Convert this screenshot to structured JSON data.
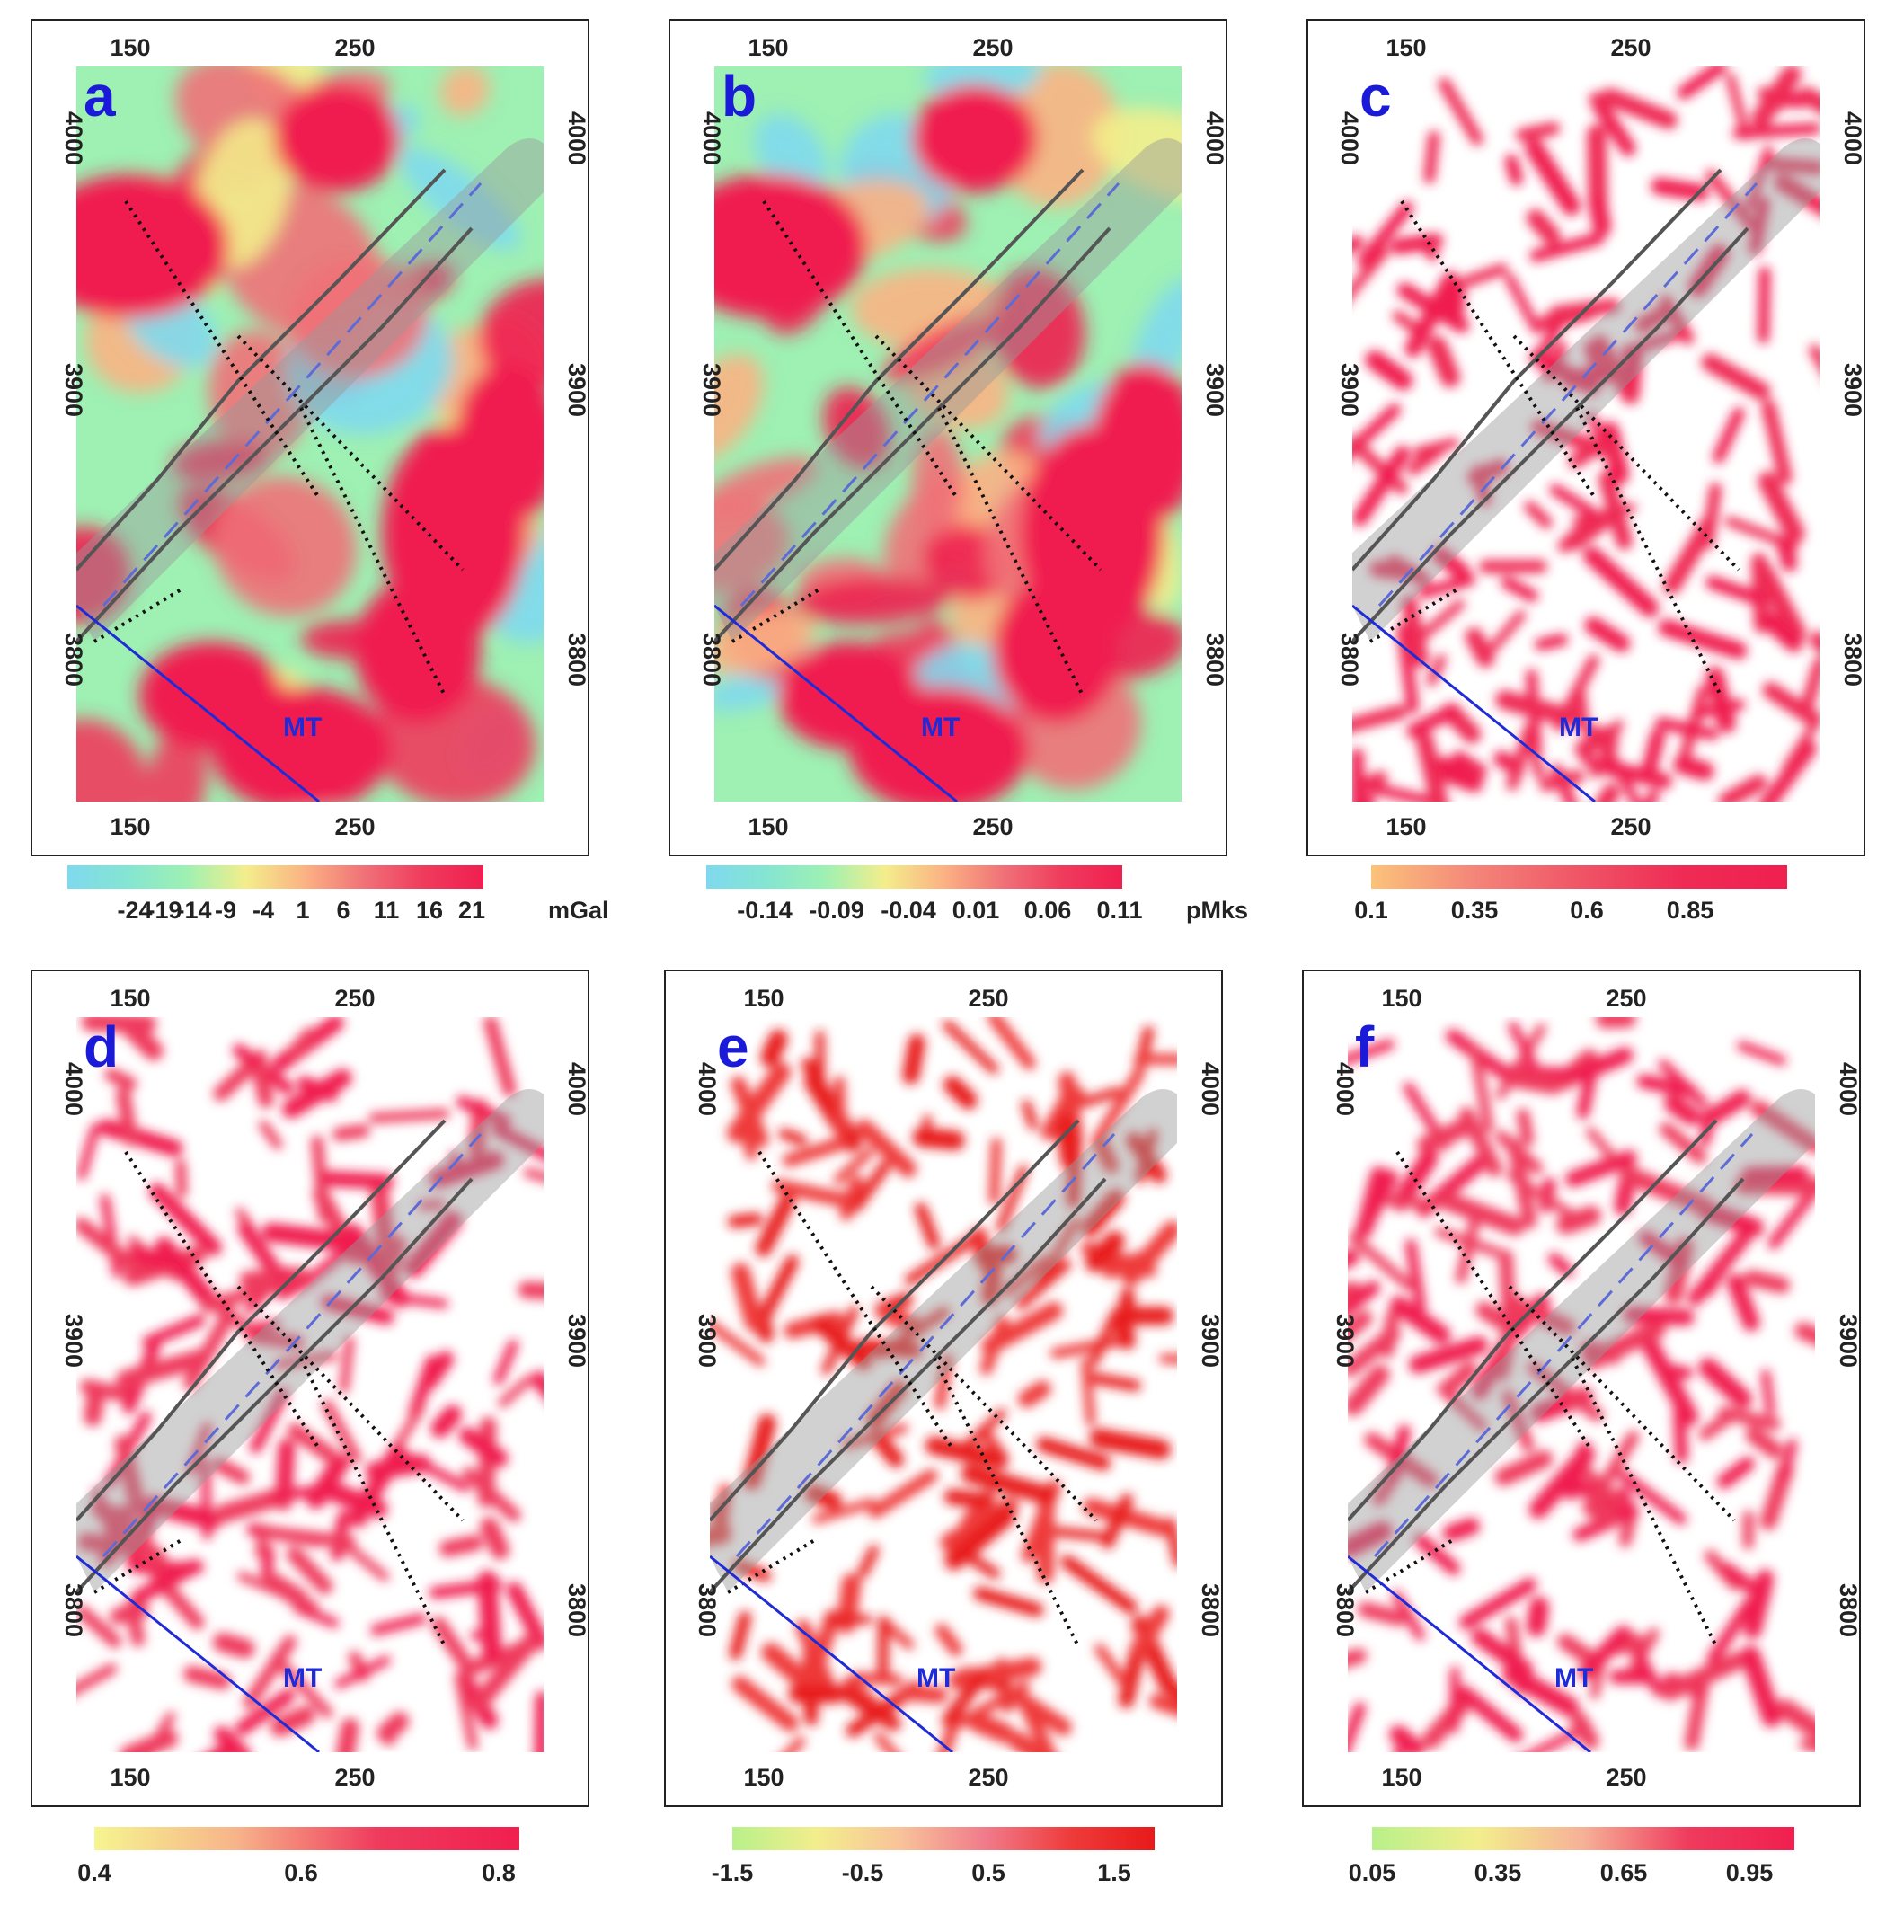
{
  "figure": {
    "axis_x_ticks": [
      "150",
      "250"
    ],
    "axis_y_ticks": [
      "4000",
      "3900",
      "3800"
    ],
    "fault_label": "MT",
    "panels": [
      {
        "id": "a",
        "label": "a",
        "unit": "mGal",
        "colorbar_ticks": [
          "-24",
          "-19",
          "-14",
          "-9",
          "-4",
          "1",
          "6",
          "11",
          "16",
          "21"
        ],
        "colormap": [
          "#7fd9ee",
          "#84e5d2",
          "#9ef0b3",
          "#f3ee8c",
          "#fbb283",
          "#f07178",
          "#ef3b5d",
          "#f01f4f"
        ]
      },
      {
        "id": "b",
        "label": "b",
        "unit": "pMks",
        "colorbar_ticks": [
          "-0.14",
          "-0.09",
          "-0.04",
          "0.01",
          "0.06",
          "0.11"
        ],
        "colormap": [
          "#7fd9ee",
          "#84e5d2",
          "#9ef0b3",
          "#f3ee8c",
          "#fbb283",
          "#f07178",
          "#ef3b5d",
          "#f01f4f"
        ]
      },
      {
        "id": "c",
        "label": "c",
        "unit": "",
        "colorbar_ticks": [
          "0.1",
          "0.35",
          "0.6",
          "0.85"
        ],
        "colormap": [
          "#fbc37a",
          "#f4857a",
          "#ef5566",
          "#ef2b55",
          "#f01f4f"
        ]
      },
      {
        "id": "d",
        "label": "d",
        "unit": "",
        "colorbar_ticks": [
          "0.4",
          "0.6",
          "0.8"
        ],
        "colormap": [
          "#f6f58f",
          "#f7b48a",
          "#ef3b5d",
          "#f01f4f"
        ]
      },
      {
        "id": "e",
        "label": "e",
        "unit": "",
        "colorbar_ticks": [
          "-1.5",
          "-0.5",
          "0.5",
          "1.5"
        ],
        "colormap": [
          "#b8f08a",
          "#f3ee8c",
          "#f8c29a",
          "#f07b8a",
          "#ef3b3b",
          "#e81a1a"
        ]
      },
      {
        "id": "f",
        "label": "f",
        "unit": "",
        "colorbar_ticks": [
          "0.05",
          "0.35",
          "0.65",
          "0.95"
        ],
        "colormap": [
          "#b8f08a",
          "#f3ee8c",
          "#f6b197",
          "#ef3b5d",
          "#f01f4f"
        ]
      }
    ]
  }
}
